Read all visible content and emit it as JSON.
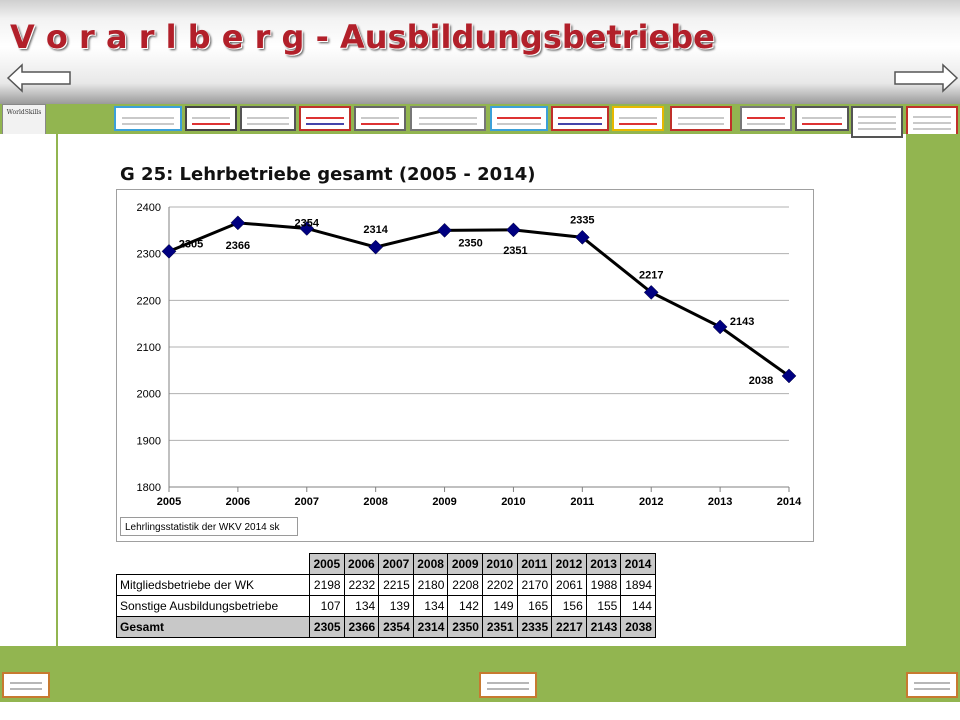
{
  "header": {
    "title": "V o r a r l b e r g - Ausbildungsbetriebe"
  },
  "nav": {
    "back_icon": "arrow-left-icon",
    "forward_icon": "arrow-right-icon"
  },
  "logo": {
    "text": "WorldSkills"
  },
  "colors": {
    "accent_green": "#92b550",
    "title_red": "#b2202a",
    "series": "#000080"
  },
  "chart_title": "G 25: Lehrbetriebe gesamt (2005 - 2014)",
  "chart_data": {
    "type": "line",
    "title": "G 25: Lehrbetriebe gesamt (2005 - 2014)",
    "x": [
      "2005",
      "2006",
      "2007",
      "2008",
      "2009",
      "2010",
      "2011",
      "2012",
      "2013",
      "2014"
    ],
    "series": [
      {
        "values": [
          2305,
          2366,
          2354,
          2314,
          2350,
          2351,
          2335,
          2217,
          2143,
          2038
        ]
      }
    ],
    "ylim": [
      1800,
      2400
    ],
    "yticks": [
      1800,
      1900,
      2000,
      2100,
      2200,
      2300,
      2400
    ],
    "grid": true,
    "marker": "diamond",
    "source": "Lehrlingsstatistik der WKV 2014  sk"
  },
  "table": {
    "years": [
      "2005",
      "2006",
      "2007",
      "2008",
      "2009",
      "2010",
      "2011",
      "2012",
      "2013",
      "2014"
    ],
    "rows": [
      {
        "label": "Mitgliedsbetriebe der WK",
        "values": [
          "2198",
          "2232",
          "2215",
          "2180",
          "2208",
          "2202",
          "2170",
          "2061",
          "1988",
          "1894"
        ]
      },
      {
        "label": "Sonstige Ausbildungsbetriebe",
        "values": [
          "107",
          "134",
          "139",
          "134",
          "142",
          "149",
          "165",
          "156",
          "155",
          "144"
        ]
      },
      {
        "label": "Gesamt",
        "values": [
          "2305",
          "2366",
          "2354",
          "2314",
          "2350",
          "2351",
          "2335",
          "2217",
          "2143",
          "2038"
        ]
      }
    ]
  }
}
